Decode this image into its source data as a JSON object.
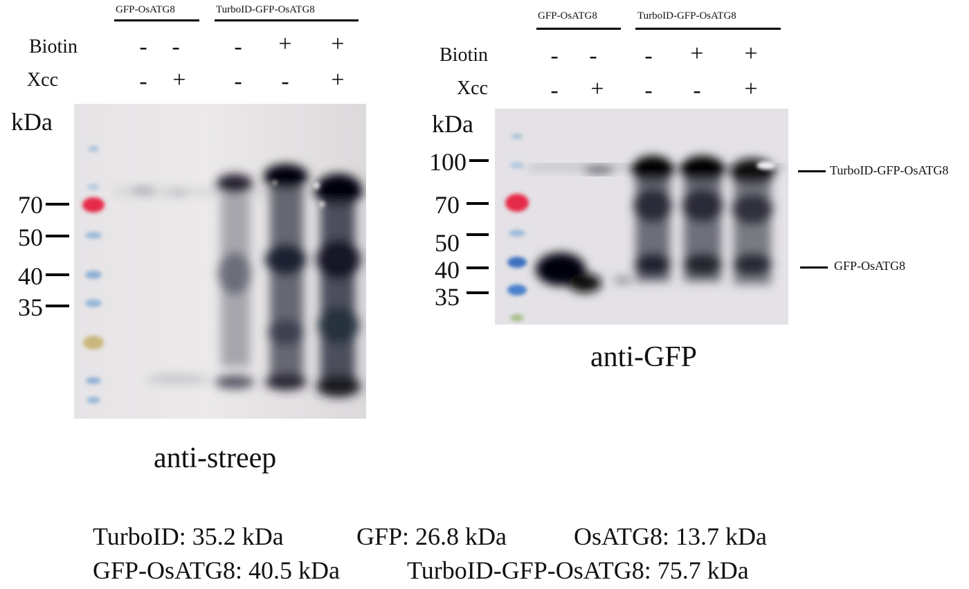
{
  "left_panel": {
    "groups": [
      "GFP-OsATG8",
      "TurboID-GFP-OsATG8"
    ],
    "row_labels": [
      "Biotin",
      "Xcc"
    ],
    "biotin": [
      "-",
      "-",
      "-",
      "+",
      "+"
    ],
    "xcc": [
      "-",
      "+",
      "-",
      "-",
      "+"
    ],
    "unit": "kDa",
    "markers": [
      "70",
      "50",
      "40",
      "35"
    ],
    "caption": "anti-streep"
  },
  "right_panel": {
    "groups": [
      "GFP-OsATG8",
      "TurboID-GFP-OsATG8"
    ],
    "row_labels": [
      "Biotin",
      "Xcc"
    ],
    "biotin": [
      "-",
      "-",
      "-",
      "+",
      "+"
    ],
    "xcc": [
      "-",
      "+",
      "-",
      "-",
      "+"
    ],
    "unit": "kDa",
    "markers": [
      "100",
      "70",
      "50",
      "40",
      "35"
    ],
    "caption": "anti-GFP",
    "annotations": [
      "TurboID-GFP-OsATG8",
      "GFP-OsATG8"
    ]
  },
  "footer": {
    "line1": [
      "TurboID: 35.2 kDa",
      "GFP: 26.8 kDa",
      "OsATG8: 13.7 kDa"
    ],
    "line2": [
      "GFP-OsATG8: 40.5 kDa",
      "TurboID-GFP-OsATG8: 75.7 kDa"
    ]
  }
}
